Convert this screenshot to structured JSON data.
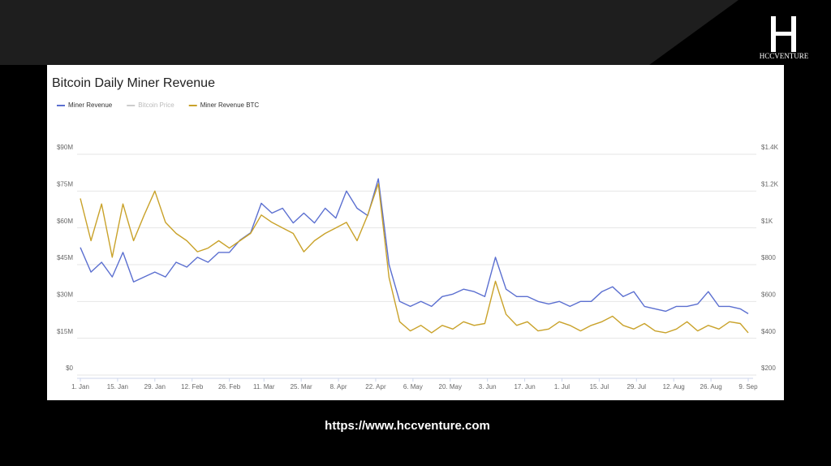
{
  "brand": "HCCVENTURE",
  "url": "https://www.hccventure.com",
  "chart_data": {
    "type": "line",
    "title": "Bitcoin Daily Miner Revenue",
    "x": [
      1,
      5,
      9,
      13,
      17,
      21,
      25,
      29,
      33,
      37,
      41,
      45,
      49,
      53,
      57,
      61,
      65,
      69,
      73,
      77,
      81,
      85,
      89,
      93,
      97,
      101,
      105,
      109,
      113,
      117,
      121,
      125,
      129,
      133,
      137,
      141,
      145,
      149,
      153,
      157,
      161,
      165,
      169,
      173,
      177,
      181,
      185,
      189,
      193,
      197,
      201,
      205,
      209,
      213,
      217,
      221,
      225,
      229,
      233,
      237,
      241,
      245,
      249,
      252
    ],
    "xlim": [
      1,
      252
    ],
    "xticks": [
      {
        "value": 1,
        "label": "1. Jan"
      },
      {
        "value": 15,
        "label": "15. Jan"
      },
      {
        "value": 29,
        "label": "29. Jan"
      },
      {
        "value": 43,
        "label": "12. Feb"
      },
      {
        "value": 57,
        "label": "26. Feb"
      },
      {
        "value": 70,
        "label": "11. Mar"
      },
      {
        "value": 84,
        "label": "25. Mar"
      },
      {
        "value": 98,
        "label": "8. Apr"
      },
      {
        "value": 112,
        "label": "22. Apr"
      },
      {
        "value": 126,
        "label": "6. May"
      },
      {
        "value": 140,
        "label": "20. May"
      },
      {
        "value": 154,
        "label": "3. Jun"
      },
      {
        "value": 168,
        "label": "17. Jun"
      },
      {
        "value": 182,
        "label": "1. Jul"
      },
      {
        "value": 196,
        "label": "15. Jul"
      },
      {
        "value": 210,
        "label": "29. Jul"
      },
      {
        "value": 224,
        "label": "12. Aug"
      },
      {
        "value": 238,
        "label": "26. Aug"
      },
      {
        "value": 252,
        "label": "9. Sep"
      }
    ],
    "ylim": [
      0,
      90
    ],
    "yticks": [
      {
        "value": 0,
        "label": "$0"
      },
      {
        "value": 15,
        "label": "$15M"
      },
      {
        "value": 30,
        "label": "$30M"
      },
      {
        "value": 45,
        "label": "$45M"
      },
      {
        "value": 60,
        "label": "$60M"
      },
      {
        "value": 75,
        "label": "$75M"
      },
      {
        "value": 90,
        "label": "$90M"
      }
    ],
    "y2lim": [
      200,
      1400
    ],
    "y2ticks": [
      {
        "value": 200,
        "label": "$200"
      },
      {
        "value": 400,
        "label": "$400"
      },
      {
        "value": 600,
        "label": "$600"
      },
      {
        "value": 800,
        "label": "$800"
      },
      {
        "value": 1000,
        "label": "$1K"
      },
      {
        "value": 1200,
        "label": "$1.2K"
      },
      {
        "value": 1400,
        "label": "$1.4K"
      }
    ],
    "grid": true,
    "legend": "top-left",
    "series": [
      {
        "name": "Miner Revenue",
        "color": "#5b6fd0",
        "values": [
          52,
          42,
          46,
          40,
          50,
          38,
          40,
          42,
          40,
          46,
          44,
          48,
          46,
          50,
          50,
          55,
          58,
          70,
          66,
          68,
          62,
          66,
          62,
          68,
          64,
          75,
          68,
          65,
          80,
          45,
          30,
          28,
          30,
          28,
          32,
          33,
          35,
          34,
          32,
          48,
          35,
          32,
          32,
          30,
          29,
          30,
          28,
          30,
          30,
          34,
          36,
          32,
          34,
          28,
          27,
          26,
          28,
          28,
          29,
          34,
          28,
          28,
          27,
          25
        ]
      },
      {
        "name": "Bitcoin Price",
        "color": "#cccccc",
        "visible": false
      },
      {
        "name": "Miner Revenue BTC",
        "color": "#c9a22a",
        "axis": "y2",
        "values": [
          1160,
          930,
          1130,
          840,
          1130,
          930,
          1070,
          1200,
          1030,
          970,
          930,
          870,
          890,
          930,
          890,
          930,
          970,
          1070,
          1030,
          1000,
          970,
          870,
          930,
          970,
          1000,
          1030,
          930,
          1070,
          1240,
          730,
          490,
          440,
          470,
          430,
          470,
          450,
          490,
          470,
          480,
          710,
          530,
          470,
          490,
          440,
          450,
          490,
          470,
          440,
          470,
          490,
          520,
          470,
          450,
          480,
          440,
          430,
          450,
          490,
          440,
          470,
          450,
          490,
          480,
          430
        ]
      }
    ]
  }
}
